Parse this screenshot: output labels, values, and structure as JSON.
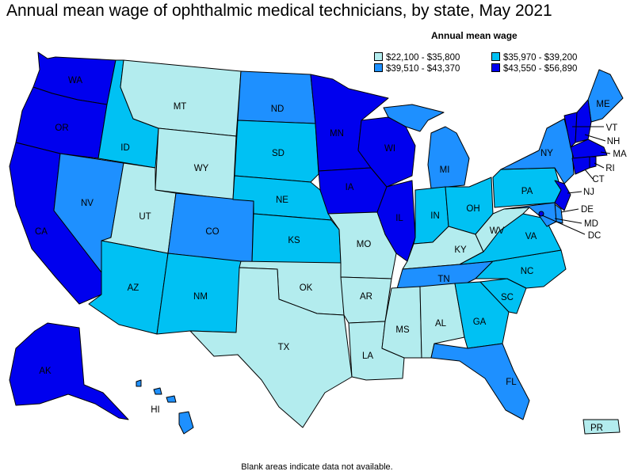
{
  "title": "Annual mean wage of ophthalmic medical technicians, by state, May 2021",
  "legend": {
    "title": "Annual mean wage",
    "bins": [
      {
        "label": "$22,100 - $35,800",
        "color": "#b3ecee"
      },
      {
        "label": "$35,970 - $39,200",
        "color": "#00c1f3"
      },
      {
        "label": "$39,510 - $43,370",
        "color": "#1e90ff"
      },
      {
        "label": "$43,550 - $56,890",
        "color": "#0000ee"
      }
    ]
  },
  "footnote": "Blank areas indicate data not available.",
  "states": {
    "WA": {
      "label": "WA",
      "bin": 3
    },
    "OR": {
      "label": "OR",
      "bin": 3
    },
    "CA": {
      "label": "CA",
      "bin": 3
    },
    "AK": {
      "label": "AK",
      "bin": 3
    },
    "ID": {
      "label": "ID",
      "bin": 1
    },
    "NV": {
      "label": "NV",
      "bin": 2
    },
    "MT": {
      "label": "MT",
      "bin": 0
    },
    "WY": {
      "label": "WY",
      "bin": 0
    },
    "UT": {
      "label": "UT",
      "bin": 0
    },
    "AZ": {
      "label": "AZ",
      "bin": 1
    },
    "CO": {
      "label": "CO",
      "bin": 2
    },
    "NM": {
      "label": "NM",
      "bin": 1
    },
    "ND": {
      "label": "ND",
      "bin": 2
    },
    "SD": {
      "label": "SD",
      "bin": 1
    },
    "NE": {
      "label": "NE",
      "bin": 1
    },
    "KS": {
      "label": "KS",
      "bin": 1
    },
    "OK": {
      "label": "OK",
      "bin": 0
    },
    "TX": {
      "label": "TX",
      "bin": 0
    },
    "MN": {
      "label": "MN",
      "bin": 3
    },
    "IA": {
      "label": "IA",
      "bin": 3
    },
    "MO": {
      "label": "MO",
      "bin": 0
    },
    "AR": {
      "label": "AR",
      "bin": 0
    },
    "LA": {
      "label": "LA",
      "bin": 0
    },
    "WI": {
      "label": "WI",
      "bin": 3
    },
    "IL": {
      "label": "IL",
      "bin": 3
    },
    "MI": {
      "label": "MI",
      "bin": 2
    },
    "IN": {
      "label": "IN",
      "bin": 1
    },
    "OH": {
      "label": "OH",
      "bin": 1
    },
    "KY": {
      "label": "KY",
      "bin": 0
    },
    "TN": {
      "label": "TN",
      "bin": 2
    },
    "MS": {
      "label": "MS",
      "bin": 0
    },
    "AL": {
      "label": "AL",
      "bin": 0
    },
    "GA": {
      "label": "GA",
      "bin": 1
    },
    "FL": {
      "label": "FL",
      "bin": 2
    },
    "SC": {
      "label": "SC",
      "bin": 1
    },
    "NC": {
      "label": "NC",
      "bin": 1
    },
    "VA": {
      "label": "VA",
      "bin": 1
    },
    "WV": {
      "label": "WV",
      "bin": 0
    },
    "PA": {
      "label": "PA",
      "bin": 1
    },
    "NY": {
      "label": "NY",
      "bin": 2
    },
    "ME": {
      "label": "ME",
      "bin": 2
    },
    "VT": {
      "label": "VT",
      "bin": 3
    },
    "NH": {
      "label": "NH",
      "bin": 3
    },
    "MA": {
      "label": "MA",
      "bin": 3
    },
    "RI": {
      "label": "RI",
      "bin": 3
    },
    "CT": {
      "label": "CT",
      "bin": 3
    },
    "NJ": {
      "label": "NJ",
      "bin": 3
    },
    "DE": {
      "label": "DE",
      "bin": 2
    },
    "MD": {
      "label": "MD",
      "bin": 2
    },
    "DC": {
      "label": "DC",
      "bin": 3
    },
    "HI": {
      "label": "HI",
      "bin": 2
    },
    "PR": {
      "label": "PR",
      "bin": 0
    }
  }
}
